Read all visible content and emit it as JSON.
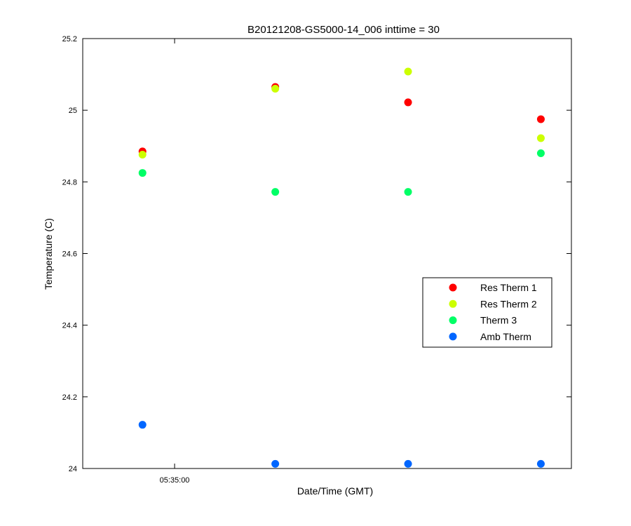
{
  "chart_data": {
    "type": "scatter",
    "title": "B20121208-GS5000-14_006 inttime = 30",
    "xlabel": "Date/Time (GMT)",
    "ylabel": "Temperature (C)",
    "ylim": [
      24,
      25.2
    ],
    "yticks": [
      24,
      24.2,
      24.4,
      24.6,
      24.8,
      25,
      25.2
    ],
    "ytick_labels": [
      "24",
      "24.2",
      "24.4",
      "24.6",
      "24.8",
      "25",
      "25.2"
    ],
    "xticks": [
      {
        "pos": 0.188,
        "label": "05:35:00"
      }
    ],
    "x": [
      1,
      2,
      3,
      4
    ],
    "xlim": [
      0.55,
      4.23
    ],
    "grid": false,
    "legend_position": "right",
    "series": [
      {
        "name": "Res Therm 1",
        "color": "#ff0000",
        "values": [
          24.885,
          25.065,
          25.022,
          24.975
        ]
      },
      {
        "name": "Res Therm 2",
        "color": "#ccff00",
        "values": [
          24.876,
          25.06,
          25.108,
          24.922
        ]
      },
      {
        "name": "Therm 3",
        "color": "#00ff66",
        "values": [
          24.825,
          24.772,
          24.772,
          24.88
        ]
      },
      {
        "name": "Amb Therm",
        "color": "#0066ff",
        "values": [
          24.122,
          24.013,
          24.013,
          24.013
        ]
      }
    ]
  }
}
